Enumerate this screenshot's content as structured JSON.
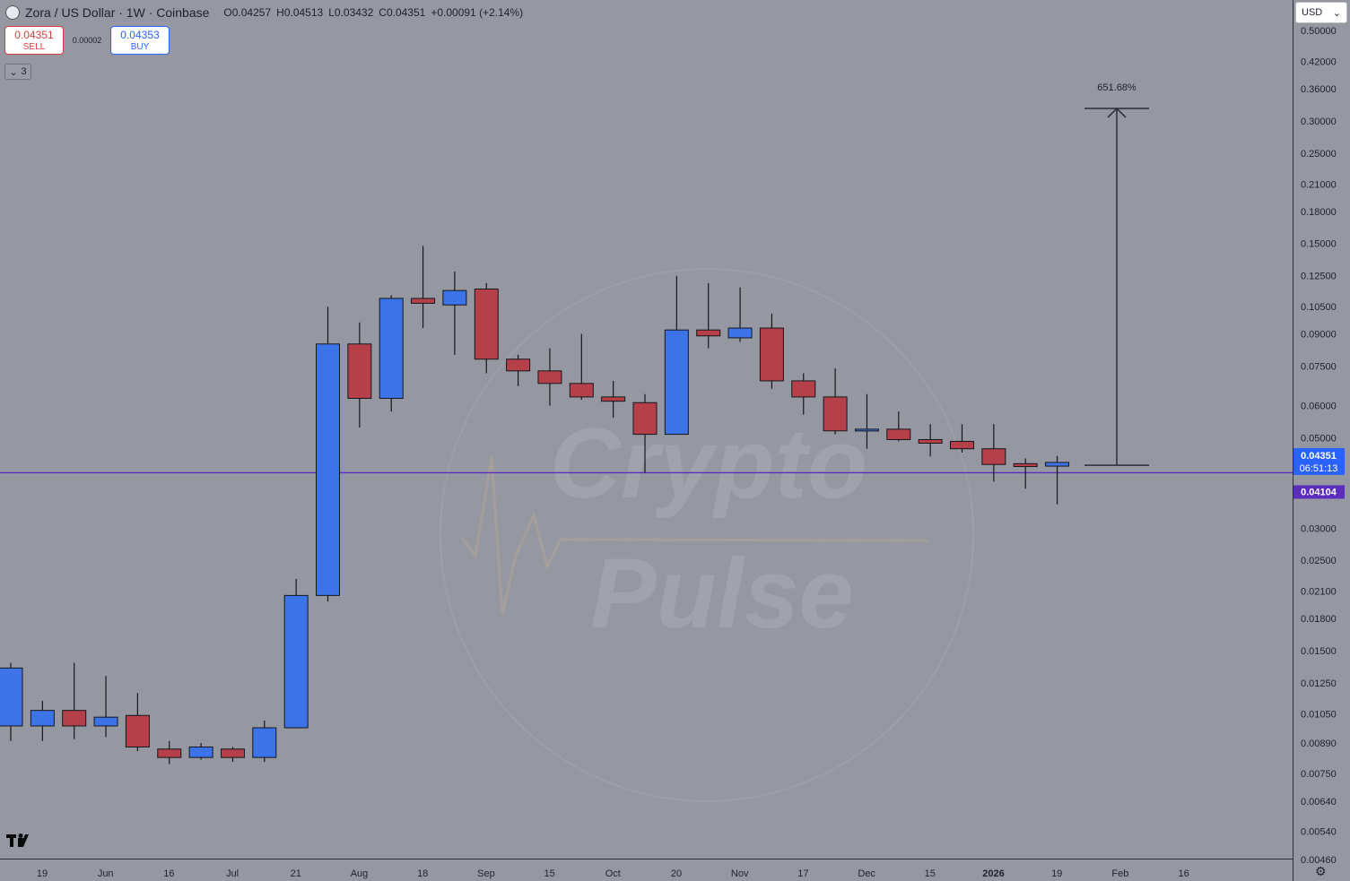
{
  "header": {
    "symbol": "Zora / US Dollar · 1W · Coinbase",
    "ohlc": [
      {
        "k": "O",
        "v": "0.04257"
      },
      {
        "k": "H",
        "v": "0.04513"
      },
      {
        "k": "L",
        "v": "0.03432"
      },
      {
        "k": "C",
        "v": "0.04351"
      }
    ],
    "change": "+0.00091 (+2.14%)"
  },
  "trade": {
    "sell_price": "0.04351",
    "sell_label": "SELL",
    "spread": "0.00002",
    "buy_price": "0.04353",
    "buy_label": "BUY"
  },
  "indicators_count": "3",
  "currency": "USD",
  "watermark": {
    "line1": "Crypto",
    "line2": "Pulse"
  },
  "colors": {
    "background": "#9598a1",
    "up": "#3d73e8",
    "down": "#b5404a",
    "level_line": "#5b2dbf",
    "last_price_tag": "#2962ff",
    "level_tag": "#5b2dbf"
  },
  "chart_data": {
    "type": "candlestick",
    "scale": "log",
    "y_ticks": [
      "0.50000",
      "0.42000",
      "0.36000",
      "0.30000",
      "0.25000",
      "0.21000",
      "0.18000",
      "0.15000",
      "0.12500",
      "0.10500",
      "0.09000",
      "0.07500",
      "0.06000",
      "0.05000",
      "0.03000",
      "0.02500",
      "0.02100",
      "0.01800",
      "0.01500",
      "0.01250",
      "0.01050",
      "0.00890",
      "0.00750",
      "0.00640",
      "0.00540",
      "0.00460"
    ],
    "x_ticks": [
      "19",
      "Jun",
      "16",
      "Jul",
      "21",
      "Aug",
      "18",
      "Sep",
      "15",
      "Oct",
      "20",
      "Nov",
      "17",
      "Dec",
      "15",
      "2026",
      "19",
      "Feb",
      "16"
    ],
    "last_price": {
      "value": "0.04351",
      "countdown": "06:51:13"
    },
    "level_line": {
      "value": "0.04104"
    },
    "measure": {
      "label": "651.68%",
      "from": 0.0428,
      "to": 0.322
    },
    "candles": [
      {
        "o": 0.0098,
        "h": 0.014,
        "l": 0.009,
        "c": 0.0136
      },
      {
        "o": 0.0098,
        "h": 0.0113,
        "l": 0.009,
        "c": 0.0107
      },
      {
        "o": 0.0107,
        "h": 0.014,
        "l": 0.0091,
        "c": 0.0098
      },
      {
        "o": 0.0098,
        "h": 0.013,
        "l": 0.0092,
        "c": 0.0103
      },
      {
        "o": 0.0104,
        "h": 0.0118,
        "l": 0.0085,
        "c": 0.0087
      },
      {
        "o": 0.0086,
        "h": 0.009,
        "l": 0.0079,
        "c": 0.0082
      },
      {
        "o": 0.0082,
        "h": 0.0089,
        "l": 0.0081,
        "c": 0.0087
      },
      {
        "o": 0.0086,
        "h": 0.0087,
        "l": 0.008,
        "c": 0.0082
      },
      {
        "o": 0.0082,
        "h": 0.0101,
        "l": 0.008,
        "c": 0.0097
      },
      {
        "o": 0.0097,
        "h": 0.0225,
        "l": 0.0097,
        "c": 0.0205
      },
      {
        "o": 0.0205,
        "h": 0.105,
        "l": 0.0198,
        "c": 0.085
      },
      {
        "o": 0.085,
        "h": 0.096,
        "l": 0.053,
        "c": 0.0625
      },
      {
        "o": 0.0625,
        "h": 0.112,
        "l": 0.058,
        "c": 0.11
      },
      {
        "o": 0.11,
        "h": 0.148,
        "l": 0.093,
        "c": 0.107
      },
      {
        "o": 0.106,
        "h": 0.128,
        "l": 0.08,
        "c": 0.115
      },
      {
        "o": 0.116,
        "h": 0.12,
        "l": 0.072,
        "c": 0.078
      },
      {
        "o": 0.078,
        "h": 0.08,
        "l": 0.067,
        "c": 0.073
      },
      {
        "o": 0.073,
        "h": 0.083,
        "l": 0.06,
        "c": 0.068
      },
      {
        "o": 0.068,
        "h": 0.09,
        "l": 0.062,
        "c": 0.063
      },
      {
        "o": 0.063,
        "h": 0.069,
        "l": 0.056,
        "c": 0.0615
      },
      {
        "o": 0.061,
        "h": 0.064,
        "l": 0.041,
        "c": 0.051
      },
      {
        "o": 0.051,
        "h": 0.125,
        "l": 0.051,
        "c": 0.092
      },
      {
        "o": 0.092,
        "h": 0.12,
        "l": 0.083,
        "c": 0.089
      },
      {
        "o": 0.088,
        "h": 0.117,
        "l": 0.086,
        "c": 0.093
      },
      {
        "o": 0.093,
        "h": 0.101,
        "l": 0.066,
        "c": 0.069
      },
      {
        "o": 0.069,
        "h": 0.072,
        "l": 0.057,
        "c": 0.063
      },
      {
        "o": 0.063,
        "h": 0.074,
        "l": 0.051,
        "c": 0.052
      },
      {
        "o": 0.052,
        "h": 0.064,
        "l": 0.047,
        "c": 0.0525
      },
      {
        "o": 0.0525,
        "h": 0.058,
        "l": 0.049,
        "c": 0.0495
      },
      {
        "o": 0.0495,
        "h": 0.054,
        "l": 0.045,
        "c": 0.0485
      },
      {
        "o": 0.049,
        "h": 0.054,
        "l": 0.046,
        "c": 0.047
      },
      {
        "o": 0.047,
        "h": 0.054,
        "l": 0.039,
        "c": 0.043
      },
      {
        "o": 0.0432,
        "h": 0.0445,
        "l": 0.0375,
        "c": 0.0425
      },
      {
        "o": 0.0426,
        "h": 0.0451,
        "l": 0.0343,
        "c": 0.0435
      }
    ]
  }
}
